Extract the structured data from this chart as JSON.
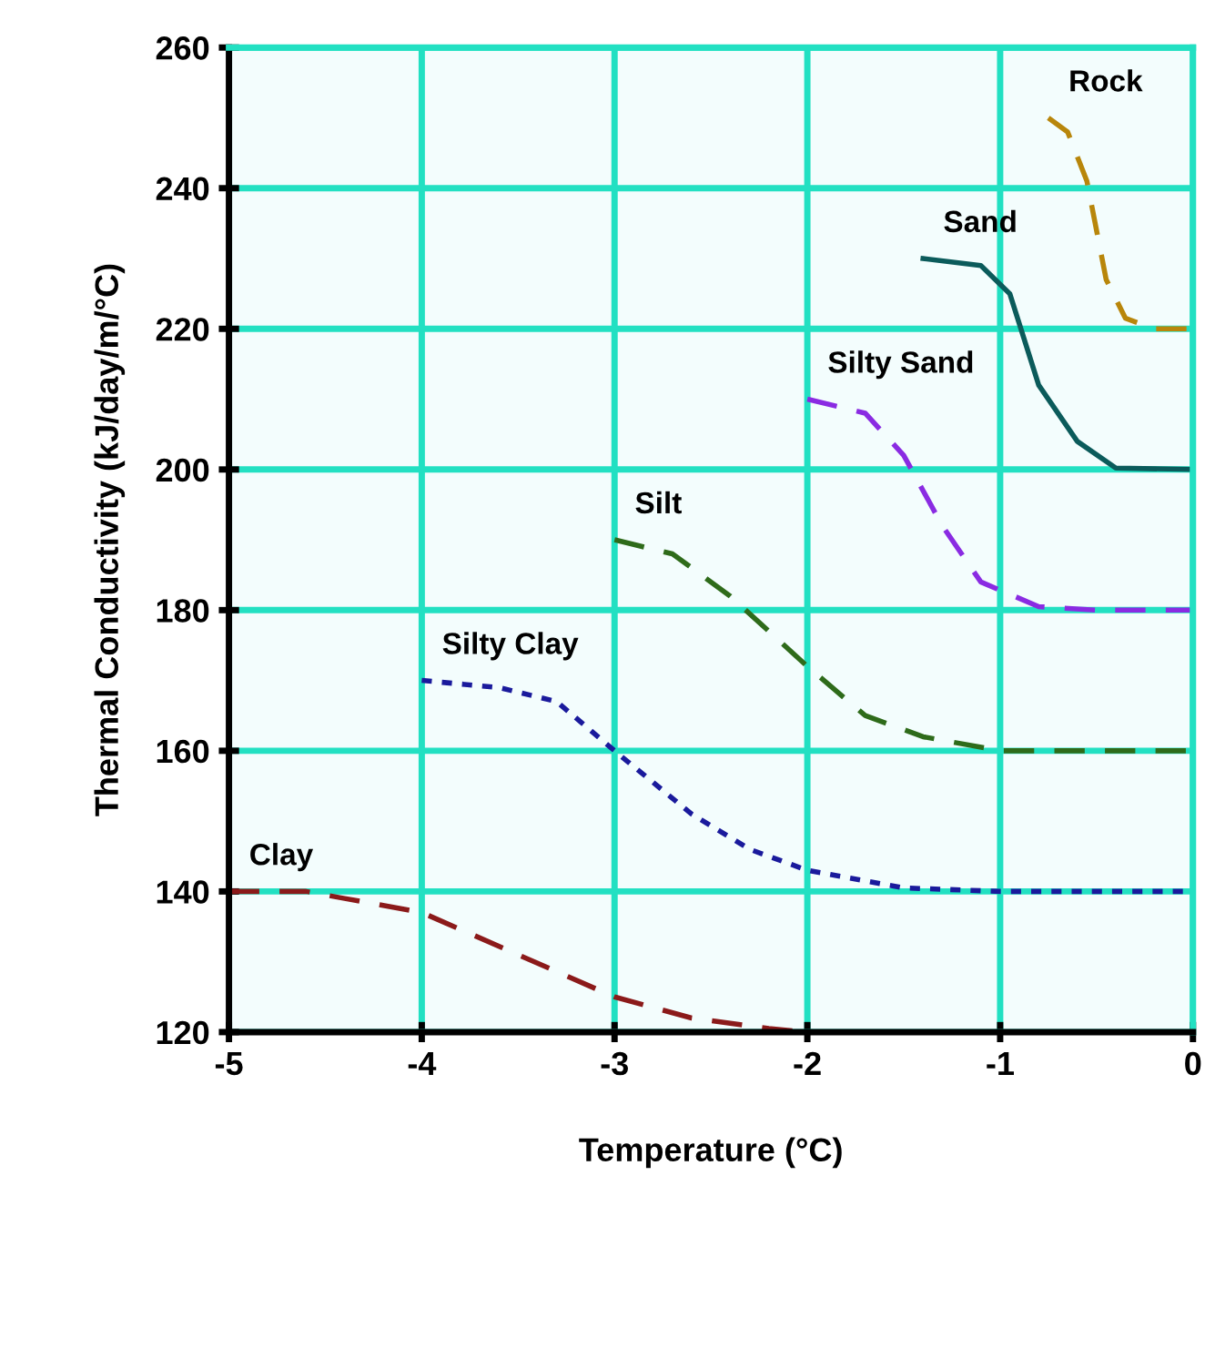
{
  "chart_data": {
    "type": "line",
    "xlabel": "Temperature (°C)",
    "ylabel": "Thermal Conductivity (kJ/day/m/°C)",
    "xlim": [
      -5,
      0
    ],
    "ylim": [
      120,
      260
    ],
    "xticks": [
      -5,
      -4,
      -3,
      -2,
      -1,
      0
    ],
    "yticks": [
      120,
      140,
      160,
      180,
      200,
      220,
      240,
      260
    ],
    "grid": true,
    "legend": false,
    "marker": "none",
    "series": [
      {
        "name": "Clay",
        "color": "#8b1a1a",
        "line_style": "dashed",
        "x": [
          -5,
          -4.6,
          -4.4,
          -4,
          -3.5,
          -3,
          -2.6,
          -2.2,
          -2
        ],
        "values": [
          140,
          140,
          139,
          137,
          131,
          125,
          122,
          120.5,
          120
        ]
      },
      {
        "name": "Silty Clay",
        "color": "#1a1a9c",
        "line_style": "dotted",
        "x": [
          -4,
          -3.6,
          -3.3,
          -3,
          -2.6,
          -2.3,
          -2,
          -1.5,
          -1,
          0
        ],
        "values": [
          170,
          169,
          167,
          160,
          151,
          146,
          143,
          140.5,
          140,
          140
        ]
      },
      {
        "name": "Silt",
        "color": "#2e6b1a",
        "line_style": "dashed",
        "x": [
          -3,
          -2.7,
          -2.4,
          -2.2,
          -2,
          -1.7,
          -1.4,
          -1,
          0
        ],
        "values": [
          190,
          188,
          182,
          177,
          172,
          165,
          162,
          160,
          160
        ]
      },
      {
        "name": "Silty Sand",
        "color": "#8a2be2",
        "line_style": "dashed",
        "x": [
          -2,
          -1.7,
          -1.5,
          -1.3,
          -1.1,
          -0.8,
          -0.5,
          0
        ],
        "values": [
          210,
          208,
          202,
          192,
          184,
          180.5,
          180,
          180
        ]
      },
      {
        "name": "Sand",
        "color": "#0b5b5b",
        "line_style": "solid",
        "x": [
          -1.4,
          -1.1,
          -0.95,
          -0.8,
          -0.6,
          -0.4,
          0
        ],
        "values": [
          230,
          229,
          225,
          212,
          204,
          200.2,
          200
        ]
      },
      {
        "name": "Rock",
        "color": "#b8860b",
        "line_style": "dashed",
        "x": [
          -0.75,
          -0.65,
          -0.55,
          -0.45,
          -0.35,
          -0.2,
          0
        ],
        "values": [
          250,
          248,
          241,
          227,
          221.5,
          220,
          220
        ]
      }
    ]
  }
}
